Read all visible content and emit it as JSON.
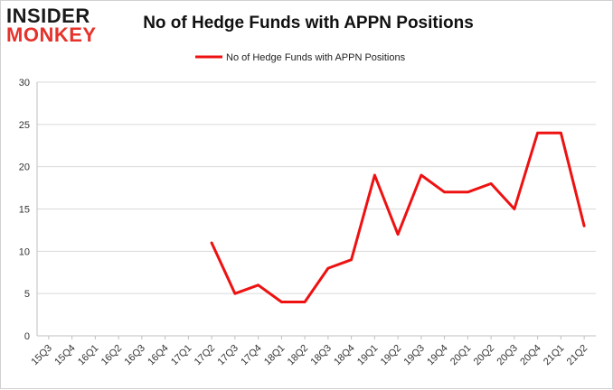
{
  "logo": {
    "line1": "INSIDER",
    "line2": "MONKEY"
  },
  "chart_data": {
    "type": "line",
    "title": "No of Hedge Funds with APPN Positions",
    "xlabel": "",
    "ylabel": "",
    "ylim": [
      0,
      30
    ],
    "yticks": [
      0,
      5,
      10,
      15,
      20,
      25,
      30
    ],
    "grid": true,
    "legend": "top-center",
    "categories": [
      "15Q3",
      "15Q4",
      "16Q1",
      "16Q2",
      "16Q3",
      "16Q4",
      "17Q1",
      "17Q2",
      "17Q3",
      "17Q4",
      "18Q1",
      "18Q2",
      "18Q3",
      "18Q4",
      "19Q1",
      "19Q2",
      "19Q3",
      "19Q4",
      "20Q1",
      "20Q2",
      "20Q3",
      "20Q4",
      "21Q1",
      "21Q2"
    ],
    "series": [
      {
        "name": "No of Hedge Funds with APPN Positions",
        "color": "#ee1111",
        "values": [
          null,
          null,
          null,
          null,
          null,
          null,
          null,
          11,
          5,
          6,
          4,
          4,
          8,
          9,
          19,
          12,
          19,
          17,
          17,
          18,
          15,
          24,
          24,
          13
        ]
      }
    ]
  }
}
